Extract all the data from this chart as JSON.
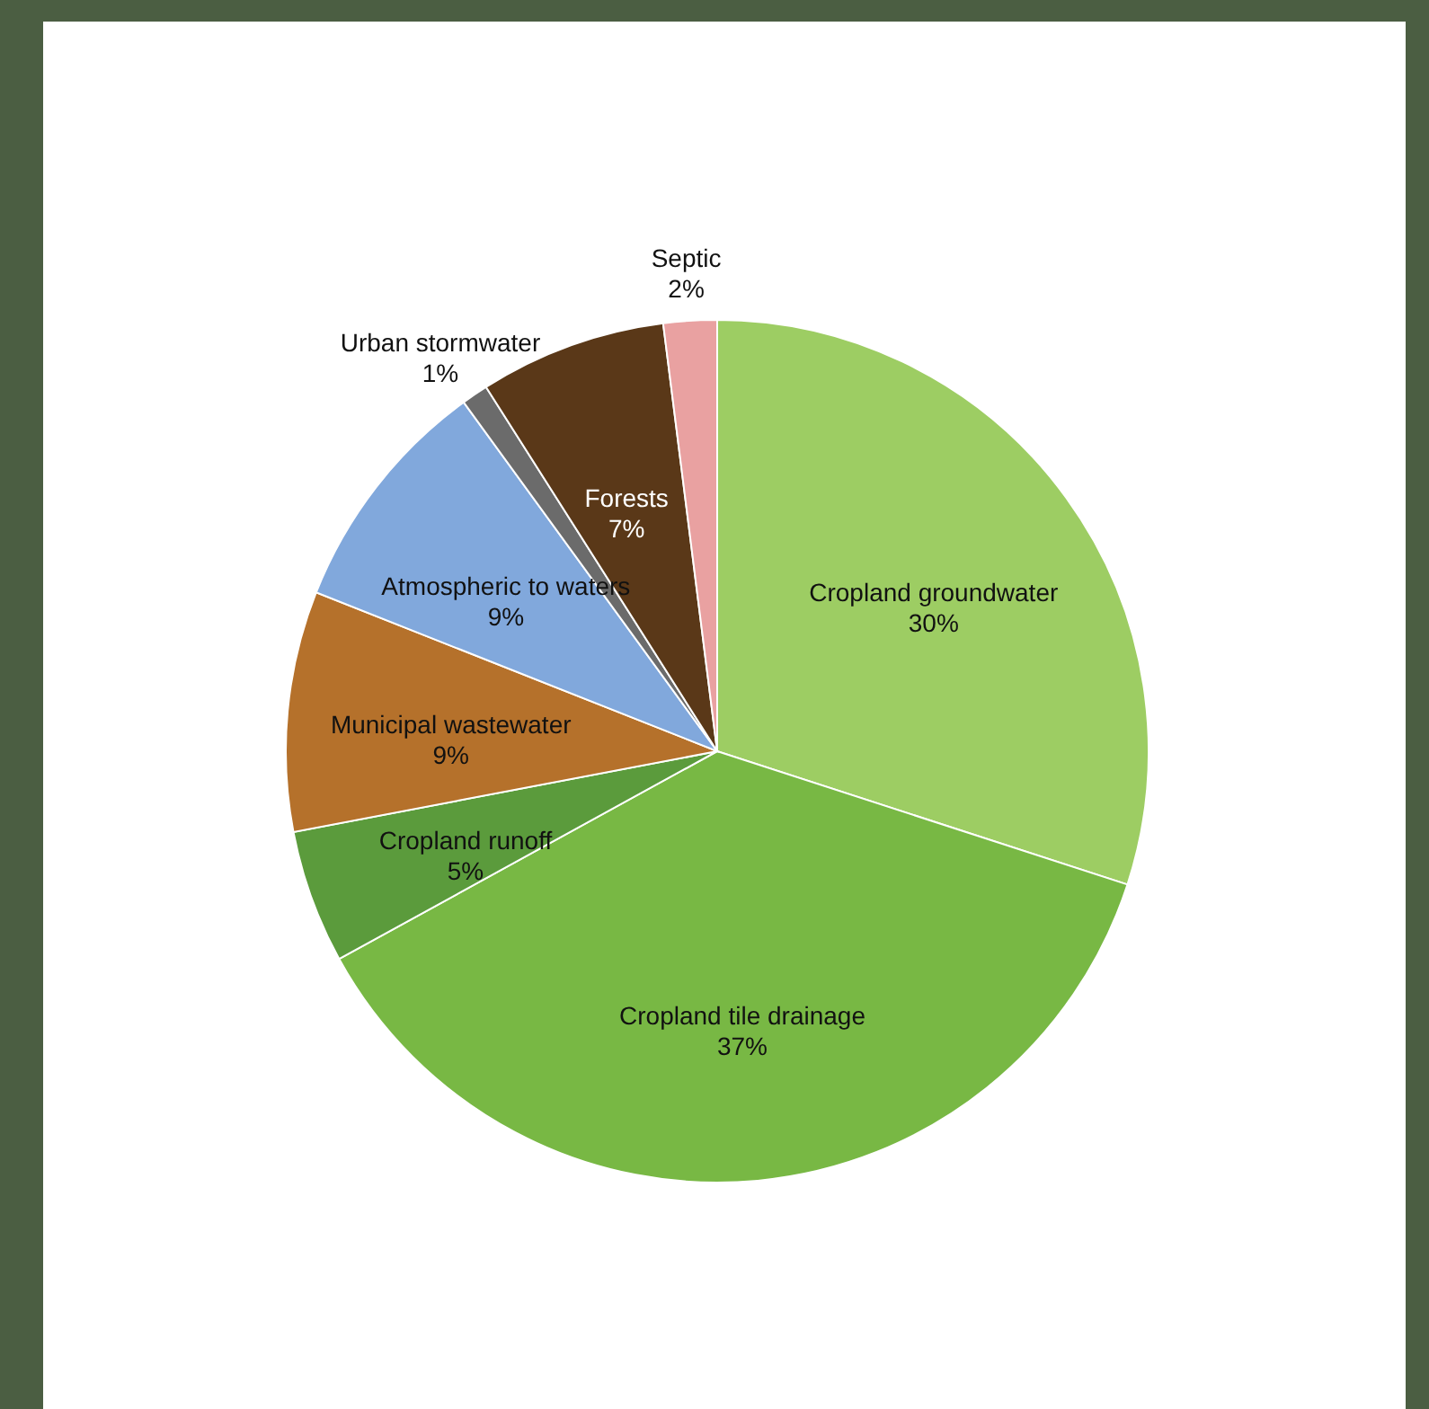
{
  "chart_data": {
    "type": "pie",
    "categories": [
      "Cropland groundwater",
      "Cropland tile drainage",
      "Cropland runoff",
      "Municipal wastewater",
      "Atmospheric to waters",
      "Urban stormwater",
      "Forests",
      "Septic"
    ],
    "values": [
      30,
      37,
      5,
      9,
      9,
      1,
      7,
      2
    ],
    "value_labels": [
      "30%",
      "37%",
      "5%",
      "9%",
      "9%",
      "1%",
      "7%",
      "2%"
    ],
    "colors": [
      "#9dcd63",
      "#78b844",
      "#5b9b3c",
      "#b5712b",
      "#81a8dc",
      "#6b6b6b",
      "#5a3818",
      "#e9a1a1"
    ],
    "legend": false
  }
}
